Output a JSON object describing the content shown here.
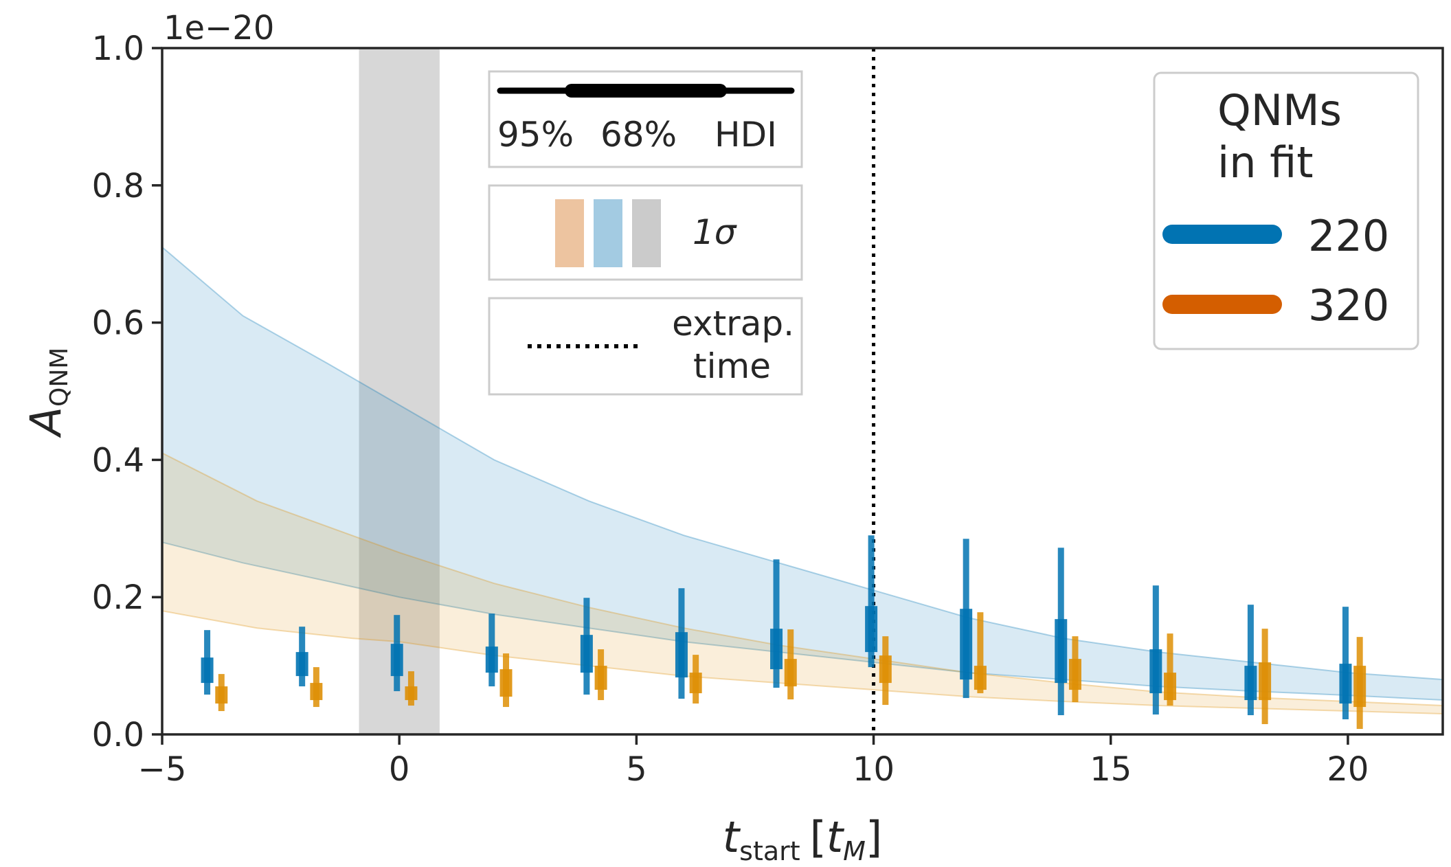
{
  "chart_data": {
    "type": "errorbar-with-bands",
    "x_axis": {
      "label_main": "t",
      "label_sub": "start",
      "unit_open": "[",
      "unit_main": "t",
      "unit_sub": "M",
      "unit_close": "]",
      "range": [
        -5,
        22
      ],
      "ticks": [
        -5,
        0,
        5,
        10,
        15,
        20
      ],
      "tick_labels": [
        "−5",
        "0",
        "5",
        "10",
        "15",
        "20"
      ]
    },
    "y_axis": {
      "label_main": "A",
      "label_sub": "QNM",
      "range": [
        0,
        1.0
      ],
      "ticks": [
        0,
        0.2,
        0.4,
        0.6,
        0.8,
        1.0
      ],
      "tick_labels": [
        "0.0",
        "0.2",
        "0.4",
        "0.6",
        "0.8",
        "1.0"
      ],
      "offset_text": "1e−20"
    },
    "shaded_region": {
      "x_range": [
        -0.85,
        0.85
      ],
      "color": "#bdbdbd"
    },
    "extrapolation_time": 10,
    "bands": [
      {
        "name": "220",
        "color": "#0173b2",
        "x": [
          -5,
          -3.3,
          -1.5,
          0,
          2,
          4,
          6,
          8,
          10,
          12,
          14,
          16,
          18,
          20,
          22
        ],
        "upper": [
          0.71,
          0.61,
          0.54,
          0.48,
          0.4,
          0.34,
          0.29,
          0.25,
          0.21,
          0.17,
          0.14,
          0.12,
          0.105,
          0.09,
          0.08
        ],
        "lower": [
          0.28,
          0.25,
          0.223,
          0.2,
          0.175,
          0.155,
          0.135,
          0.12,
          0.105,
          0.09,
          0.08,
          0.07,
          0.063,
          0.057,
          0.05
        ]
      },
      {
        "name": "320",
        "color": "#de8f05",
        "x": [
          -5,
          -3,
          -1,
          0,
          2,
          4,
          6,
          8,
          10,
          12,
          14,
          16,
          18,
          20,
          22
        ],
        "upper": [
          0.41,
          0.34,
          0.29,
          0.265,
          0.22,
          0.185,
          0.155,
          0.13,
          0.11,
          0.09,
          0.075,
          0.062,
          0.054,
          0.048,
          0.042
        ],
        "lower": [
          0.18,
          0.155,
          0.14,
          0.135,
          0.115,
          0.1,
          0.085,
          0.075,
          0.065,
          0.055,
          0.048,
          0.042,
          0.038,
          0.034,
          0.03
        ]
      }
    ],
    "series": [
      {
        "name": "220",
        "color": "#0173b2",
        "x": [
          -4.05,
          -2.05,
          -0.05,
          1.95,
          3.95,
          5.95,
          7.95,
          9.95,
          11.95,
          13.95,
          15.95,
          17.95,
          19.95
        ],
        "hdi95": [
          [
            0.058,
            0.152
          ],
          [
            0.07,
            0.157
          ],
          [
            0.063,
            0.174
          ],
          [
            0.07,
            0.176
          ],
          [
            0.058,
            0.199
          ],
          [
            0.052,
            0.213
          ],
          [
            0.068,
            0.255
          ],
          [
            0.098,
            0.29
          ],
          [
            0.053,
            0.285
          ],
          [
            0.028,
            0.272
          ],
          [
            0.029,
            0.217
          ],
          [
            0.028,
            0.189
          ],
          [
            0.022,
            0.186
          ]
        ],
        "hdi68": [
          [
            0.075,
            0.112
          ],
          [
            0.085,
            0.12
          ],
          [
            0.085,
            0.132
          ],
          [
            0.09,
            0.128
          ],
          [
            0.09,
            0.145
          ],
          [
            0.083,
            0.149
          ],
          [
            0.095,
            0.154
          ],
          [
            0.12,
            0.187
          ],
          [
            0.08,
            0.183
          ],
          [
            0.075,
            0.168
          ],
          [
            0.06,
            0.124
          ],
          [
            0.05,
            0.1
          ],
          [
            0.045,
            0.103
          ]
        ]
      },
      {
        "name": "320",
        "color": "#de8f05",
        "x": [
          -3.75,
          -1.75,
          0.25,
          2.25,
          4.25,
          6.25,
          8.25,
          10.25,
          12.25,
          14.25,
          16.25,
          18.25,
          20.25
        ],
        "hdi95": [
          [
            0.034,
            0.088
          ],
          [
            0.04,
            0.098
          ],
          [
            0.042,
            0.092
          ],
          [
            0.04,
            0.118
          ],
          [
            0.05,
            0.124
          ],
          [
            0.045,
            0.116
          ],
          [
            0.051,
            0.153
          ],
          [
            0.043,
            0.143
          ],
          [
            0.06,
            0.178
          ],
          [
            0.047,
            0.143
          ],
          [
            0.042,
            0.147
          ],
          [
            0.015,
            0.154
          ],
          [
            0.008,
            0.142
          ]
        ],
        "hdi68": [
          [
            0.045,
            0.07
          ],
          [
            0.05,
            0.075
          ],
          [
            0.05,
            0.07
          ],
          [
            0.055,
            0.095
          ],
          [
            0.065,
            0.1
          ],
          [
            0.06,
            0.09
          ],
          [
            0.07,
            0.11
          ],
          [
            0.075,
            0.115
          ],
          [
            0.065,
            0.1
          ],
          [
            0.065,
            0.11
          ],
          [
            0.05,
            0.09
          ],
          [
            0.05,
            0.105
          ],
          [
            0.04,
            0.1
          ]
        ]
      }
    ],
    "legend_hdi": {
      "pct95": "95%",
      "pct68": "68%",
      "hdi": "HDI"
    },
    "legend_sigma": {
      "label": "1σ",
      "colors": [
        "#edc4a0",
        "#a3cbe2",
        "#cbcbcb"
      ]
    },
    "legend_extrap": {
      "line1": "extrap.",
      "line2": "time"
    },
    "legend_qnm": {
      "title_line1": "QNMs",
      "title_line2": "in fit",
      "entries": [
        "220",
        "320"
      ],
      "colors": [
        "#0173b2",
        "#d45e00"
      ]
    }
  }
}
